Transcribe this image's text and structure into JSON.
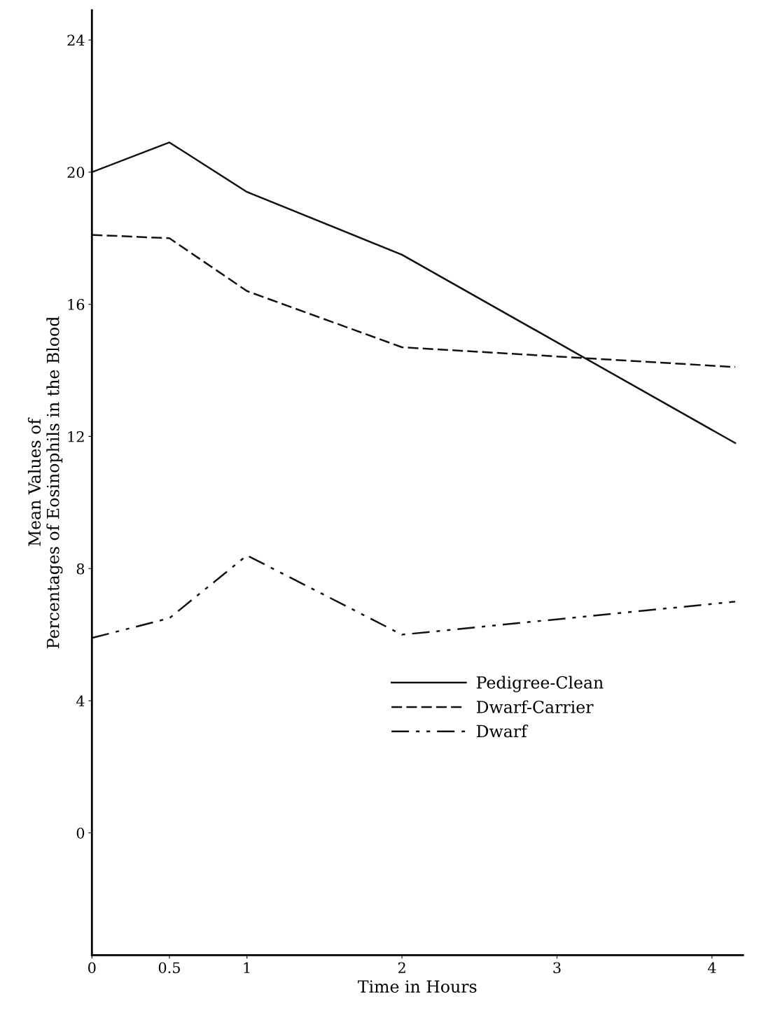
{
  "chart_data": {
    "type": "line",
    "xlabel": "Time in Hours",
    "ylabel": "Mean Values of\nPercentages of Eosinophils in the Blood",
    "x": [
      0,
      0.5,
      1,
      2,
      4.15
    ],
    "series": [
      {
        "name": "Pedigree-Clean",
        "color": "#111111",
        "line_style": "solid",
        "values": [
          20.0,
          20.9,
          19.4,
          17.5,
          11.8
        ]
      },
      {
        "name": "Dwarf-Carrier",
        "color": "#111111",
        "line_style": "dashed",
        "values": [
          18.1,
          18.0,
          16.4,
          14.7,
          14.1
        ]
      },
      {
        "name": "Dwarf",
        "color": "#111111",
        "line_style": "dashdot",
        "values": [
          5.9,
          6.5,
          8.4,
          6.0,
          7.0
        ]
      }
    ],
    "xlim": [
      0,
      4.2
    ],
    "xticks": [
      0,
      0.5,
      1,
      2,
      3,
      4
    ],
    "ylim": [
      -3.7,
      24.9
    ],
    "yticks": [
      0,
      4,
      8,
      12,
      16,
      20,
      24
    ],
    "grid": false,
    "legend": "bottom right",
    "marker": "none"
  }
}
